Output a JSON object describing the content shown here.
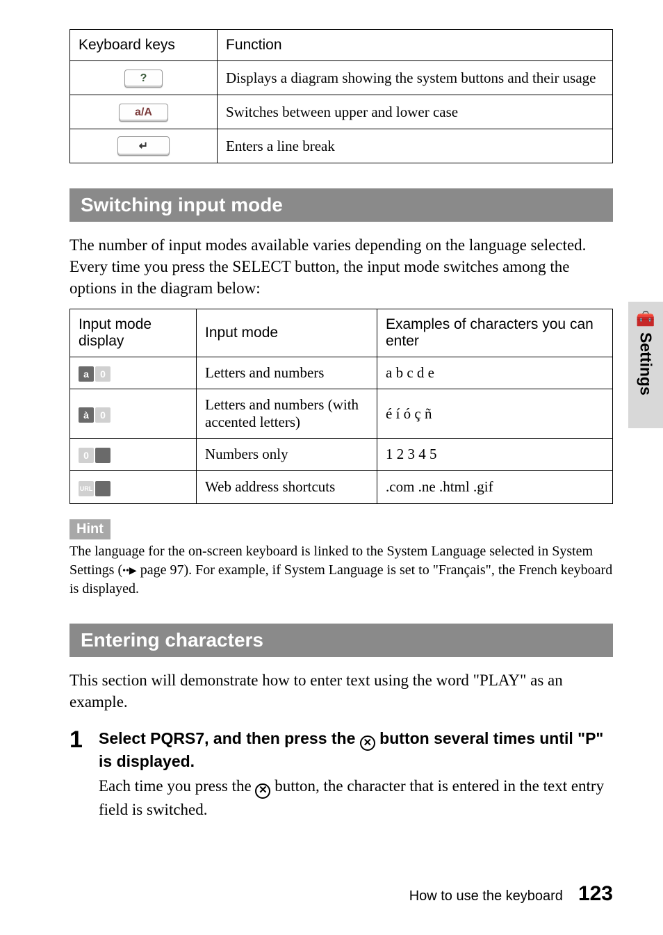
{
  "table1": {
    "headers": [
      "Keyboard keys",
      "Function"
    ],
    "rows": [
      {
        "key_label": "?",
        "key_color": "#3a5a3a",
        "function": "Displays a diagram showing the system buttons and their usage"
      },
      {
        "key_label": "a/A",
        "key_color": "#7a3a3a",
        "function": "Switches between upper and lower case"
      },
      {
        "key_label": "↵",
        "key_color": "#333333",
        "function": "Enters a line break"
      }
    ]
  },
  "section1": {
    "title": "Switching input mode",
    "body": "The number of input modes available varies depending on the language selected. Every time you press the SELECT button, the input mode switches among the options in the diagram below:"
  },
  "table2": {
    "headers": [
      "Input mode display",
      "Input mode",
      "Examples of characters you can enter"
    ],
    "rows": [
      {
        "icon": {
          "left": "a",
          "right": "0",
          "left_bg": "dark",
          "right_bg": "light"
        },
        "mode": "Letters and numbers",
        "examples": "a b c d e"
      },
      {
        "icon": {
          "left": "à",
          "right": "0",
          "left_bg": "dark",
          "right_bg": "light"
        },
        "mode": "Letters and numbers (with accented letters)",
        "examples": "é í ó ç ñ"
      },
      {
        "icon": {
          "left": "0",
          "right": "",
          "left_bg": "light",
          "right_bg": "dark"
        },
        "mode": "Numbers only",
        "examples": "1 2 3 4 5"
      },
      {
        "icon": {
          "left": "URL",
          "right": "",
          "left_bg": "light",
          "right_bg": "dark",
          "left_small": true
        },
        "mode": "Web address shortcuts",
        "examples": ".com .ne .html .gif"
      }
    ]
  },
  "hint": {
    "label": "Hint",
    "text_before": "The language for the on-screen keyboard is linked to the System Language selected in System Settings (",
    "page_ref": "page 97",
    "text_after": "). For example, if System Language is set to \"Français\", the French keyboard is displayed."
  },
  "section2": {
    "title": "Entering characters",
    "body": "This section will demonstrate how to enter text using the word \"PLAY\" as an example."
  },
  "step1": {
    "num": "1",
    "title_before": "Select PQRS7, and then press the ",
    "title_after": " button several times until \"P\" is displayed.",
    "icon_glyph": "✕",
    "desc_before": "Each time you press the ",
    "desc_after": " button, the character that is entered in the text entry field is switched."
  },
  "side": {
    "icon": "🧰",
    "text": "Settings"
  },
  "footer": {
    "text": "How to use the keyboard",
    "page": "123"
  }
}
